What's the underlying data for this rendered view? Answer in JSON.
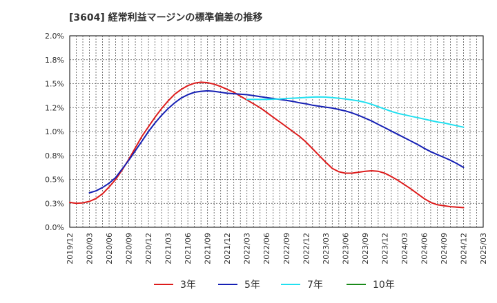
{
  "chart_data": {
    "type": "line",
    "title": "[3604]  経常利益マージンの標準偏差の推移",
    "xlabel": "",
    "ylabel": "",
    "ylim": [
      0,
      2.0
    ],
    "y_ticks": [
      "0.0%",
      "0.3%",
      "0.5%",
      "0.8%",
      "1.0%",
      "1.2%",
      "1.5%",
      "1.8%",
      "2.0%"
    ],
    "x_ticks": [
      "2019/12",
      "2020/03",
      "2020/06",
      "2020/09",
      "2020/12",
      "2021/03",
      "2021/06",
      "2021/09",
      "2021/12",
      "2022/03",
      "2022/06",
      "2022/09",
      "2022/12",
      "2023/03",
      "2023/06",
      "2023/09",
      "2023/12",
      "2024/03",
      "2024/06",
      "2024/09",
      "2024/12",
      "2025/03"
    ],
    "grid": true,
    "legend_position": "bottom",
    "series": [
      {
        "name": "3年",
        "color": "#dd1c1c",
        "values": [
          [
            "2019/12",
            0.26
          ],
          [
            "2020/01",
            0.25
          ],
          [
            "2020/02",
            0.255
          ],
          [
            "2020/03",
            0.27
          ],
          [
            "2020/04",
            0.3
          ],
          [
            "2020/05",
            0.35
          ],
          [
            "2020/06",
            0.42
          ],
          [
            "2020/07",
            0.5
          ],
          [
            "2020/08",
            0.6
          ],
          [
            "2020/09",
            0.71
          ],
          [
            "2020/10",
            0.83
          ],
          [
            "2020/11",
            0.95
          ],
          [
            "2020/12",
            1.05
          ],
          [
            "2021/01",
            1.15
          ],
          [
            "2021/02",
            1.24
          ],
          [
            "2021/03",
            1.32
          ],
          [
            "2021/04",
            1.39
          ],
          [
            "2021/05",
            1.44
          ],
          [
            "2021/06",
            1.48
          ],
          [
            "2021/07",
            1.505
          ],
          [
            "2021/08",
            1.515
          ],
          [
            "2021/09",
            1.51
          ],
          [
            "2021/10",
            1.495
          ],
          [
            "2021/11",
            1.47
          ],
          [
            "2021/12",
            1.44
          ],
          [
            "2022/01",
            1.41
          ],
          [
            "2022/02",
            1.37
          ],
          [
            "2022/03",
            1.33
          ],
          [
            "2022/04",
            1.29
          ],
          [
            "2022/05",
            1.25
          ],
          [
            "2022/06",
            1.2
          ],
          [
            "2022/07",
            1.15
          ],
          [
            "2022/08",
            1.1
          ],
          [
            "2022/09",
            1.05
          ],
          [
            "2022/10",
            1.0
          ],
          [
            "2022/11",
            0.95
          ],
          [
            "2022/12",
            0.89
          ],
          [
            "2023/01",
            0.82
          ],
          [
            "2023/02",
            0.75
          ],
          [
            "2023/03",
            0.68
          ],
          [
            "2023/04",
            0.615
          ],
          [
            "2023/05",
            0.58
          ],
          [
            "2023/06",
            0.565
          ],
          [
            "2023/07",
            0.565
          ],
          [
            "2023/08",
            0.575
          ],
          [
            "2023/09",
            0.585
          ],
          [
            "2023/10",
            0.59
          ],
          [
            "2023/11",
            0.585
          ],
          [
            "2023/12",
            0.565
          ],
          [
            "2024/01",
            0.53
          ],
          [
            "2024/02",
            0.49
          ],
          [
            "2024/03",
            0.445
          ],
          [
            "2024/04",
            0.4
          ],
          [
            "2024/05",
            0.35
          ],
          [
            "2024/06",
            0.3
          ],
          [
            "2024/07",
            0.26
          ],
          [
            "2024/08",
            0.235
          ],
          [
            "2024/09",
            0.225
          ],
          [
            "2024/10",
            0.215
          ],
          [
            "2024/11",
            0.21
          ],
          [
            "2024/12",
            0.205
          ]
        ]
      },
      {
        "name": "5年",
        "color": "#1620b4",
        "values": [
          [
            "2020/03",
            0.36
          ],
          [
            "2020/04",
            0.38
          ],
          [
            "2020/05",
            0.415
          ],
          [
            "2020/06",
            0.46
          ],
          [
            "2020/07",
            0.52
          ],
          [
            "2020/08",
            0.61
          ],
          [
            "2020/09",
            0.7
          ],
          [
            "2020/10",
            0.8
          ],
          [
            "2020/11",
            0.9
          ],
          [
            "2020/12",
            1.0
          ],
          [
            "2021/01",
            1.09
          ],
          [
            "2021/02",
            1.17
          ],
          [
            "2021/03",
            1.24
          ],
          [
            "2021/04",
            1.3
          ],
          [
            "2021/05",
            1.35
          ],
          [
            "2021/06",
            1.385
          ],
          [
            "2021/07",
            1.41
          ],
          [
            "2021/08",
            1.42
          ],
          [
            "2021/09",
            1.425
          ],
          [
            "2021/10",
            1.42
          ],
          [
            "2021/11",
            1.41
          ],
          [
            "2021/12",
            1.4
          ],
          [
            "2022/01",
            1.395
          ],
          [
            "2022/02",
            1.39
          ],
          [
            "2022/03",
            1.385
          ],
          [
            "2022/04",
            1.375
          ],
          [
            "2022/05",
            1.365
          ],
          [
            "2022/06",
            1.355
          ],
          [
            "2022/07",
            1.345
          ],
          [
            "2022/08",
            1.335
          ],
          [
            "2022/09",
            1.325
          ],
          [
            "2022/10",
            1.315
          ],
          [
            "2022/11",
            1.3
          ],
          [
            "2022/12",
            1.29
          ],
          [
            "2023/01",
            1.275
          ],
          [
            "2023/02",
            1.265
          ],
          [
            "2023/03",
            1.255
          ],
          [
            "2023/04",
            1.245
          ],
          [
            "2023/05",
            1.23
          ],
          [
            "2023/06",
            1.215
          ],
          [
            "2023/07",
            1.195
          ],
          [
            "2023/08",
            1.17
          ],
          [
            "2023/09",
            1.14
          ],
          [
            "2023/10",
            1.11
          ],
          [
            "2023/11",
            1.075
          ],
          [
            "2023/12",
            1.04
          ],
          [
            "2024/01",
            1.005
          ],
          [
            "2024/02",
            0.97
          ],
          [
            "2024/03",
            0.935
          ],
          [
            "2024/04",
            0.9
          ],
          [
            "2024/05",
            0.865
          ],
          [
            "2024/06",
            0.825
          ],
          [
            "2024/07",
            0.79
          ],
          [
            "2024/08",
            0.76
          ],
          [
            "2024/09",
            0.73
          ],
          [
            "2024/10",
            0.7
          ],
          [
            "2024/11",
            0.665
          ],
          [
            "2024/12",
            0.625
          ]
        ]
      },
      {
        "name": "7年",
        "color": "#22e0f0",
        "values": [
          [
            "2022/03",
            1.335
          ],
          [
            "2022/04",
            1.335
          ],
          [
            "2022/05",
            1.335
          ],
          [
            "2022/06",
            1.335
          ],
          [
            "2022/07",
            1.338
          ],
          [
            "2022/08",
            1.34
          ],
          [
            "2022/09",
            1.345
          ],
          [
            "2022/10",
            1.348
          ],
          [
            "2022/11",
            1.352
          ],
          [
            "2022/12",
            1.356
          ],
          [
            "2023/01",
            1.36
          ],
          [
            "2023/02",
            1.362
          ],
          [
            "2023/03",
            1.36
          ],
          [
            "2023/04",
            1.355
          ],
          [
            "2023/05",
            1.348
          ],
          [
            "2023/06",
            1.34
          ],
          [
            "2023/07",
            1.33
          ],
          [
            "2023/08",
            1.32
          ],
          [
            "2023/09",
            1.305
          ],
          [
            "2023/10",
            1.285
          ],
          [
            "2023/11",
            1.26
          ],
          [
            "2023/12",
            1.235
          ],
          [
            "2024/01",
            1.21
          ],
          [
            "2024/02",
            1.19
          ],
          [
            "2024/03",
            1.175
          ],
          [
            "2024/04",
            1.16
          ],
          [
            "2024/05",
            1.145
          ],
          [
            "2024/06",
            1.13
          ],
          [
            "2024/07",
            1.115
          ],
          [
            "2024/08",
            1.1
          ],
          [
            "2024/09",
            1.09
          ],
          [
            "2024/10",
            1.075
          ],
          [
            "2024/11",
            1.06
          ],
          [
            "2024/12",
            1.045
          ]
        ]
      },
      {
        "name": "10年",
        "color": "#1a8a1a",
        "values": []
      }
    ]
  }
}
